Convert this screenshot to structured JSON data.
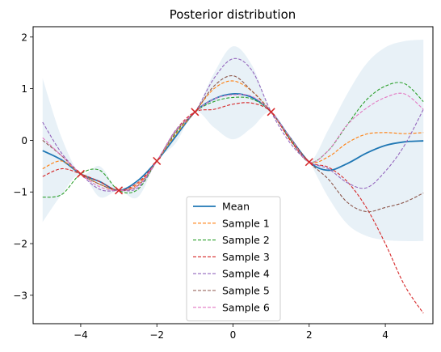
{
  "chart_data": {
    "type": "line",
    "title": "Posterior distribution",
    "xlabel": "",
    "ylabel": "",
    "xlim": [
      -5.25,
      5.25
    ],
    "ylim": [
      -3.55,
      2.2
    ],
    "xticks": [
      -4,
      -2,
      0,
      2,
      4
    ],
    "yticks": [
      -3,
      -2,
      -1,
      0,
      1,
      2
    ],
    "grid": false,
    "legend_position": "bottom-center",
    "band": {
      "color": "#1f77b4",
      "x": [
        -5,
        -4.5,
        -4,
        -3.5,
        -3,
        -2.5,
        -2,
        -1.5,
        -1,
        -0.5,
        0,
        0.5,
        1,
        1.5,
        2,
        2.5,
        3,
        3.5,
        4,
        4.5,
        5
      ],
      "upper": [
        1.2,
        0.05,
        -0.65,
        -0.5,
        -0.97,
        -0.8,
        -0.4,
        0.22,
        0.55,
        1.3,
        1.82,
        1.45,
        0.55,
        0.05,
        -0.42,
        0.2,
        0.9,
        1.48,
        1.8,
        1.92,
        1.95
      ],
      "lower": [
        -1.58,
        -1.05,
        -0.65,
        -1.1,
        -0.97,
        -1.1,
        -0.4,
        -0.05,
        0.55,
        0.25,
        0.02,
        0.25,
        0.55,
        0.05,
        -0.42,
        -1.1,
        -1.62,
        -1.85,
        -1.93,
        -1.95,
        -1.95
      ]
    },
    "observations": {
      "color": "#d62728",
      "marker": "x",
      "x": [
        -4,
        -3,
        -2,
        -1,
        1,
        2
      ],
      "y": [
        -0.65,
        -0.97,
        -0.4,
        0.55,
        0.55,
        -0.42
      ]
    },
    "series": [
      {
        "name": "Mean",
        "color": "#1f77b4",
        "style": "solid",
        "x": [
          -5,
          -4.5,
          -4,
          -3.5,
          -3,
          -2.5,
          -2,
          -1.5,
          -1,
          -0.5,
          0,
          0.5,
          1,
          1.5,
          2,
          2.5,
          3,
          3.5,
          4,
          4.5,
          5
        ],
        "y": [
          -0.2,
          -0.38,
          -0.65,
          -0.8,
          -0.97,
          -0.78,
          -0.4,
          0.08,
          0.55,
          0.8,
          0.9,
          0.83,
          0.55,
          0.05,
          -0.42,
          -0.58,
          -0.45,
          -0.25,
          -0.1,
          -0.03,
          -0.01
        ]
      },
      {
        "name": "Sample 1",
        "color": "#ff7f0e",
        "style": "dashed",
        "x": [
          -5,
          -4.5,
          -4,
          -3.5,
          -3,
          -2.5,
          -2,
          -1.5,
          -1,
          -0.5,
          0,
          0.5,
          1,
          1.5,
          2,
          2.5,
          3,
          3.5,
          4,
          4.5,
          5
        ],
        "y": [
          -0.55,
          -0.4,
          -0.65,
          -0.85,
          -0.97,
          -0.85,
          -0.4,
          0.12,
          0.55,
          1.0,
          1.15,
          0.95,
          0.55,
          0.02,
          -0.42,
          -0.32,
          -0.05,
          0.12,
          0.15,
          0.13,
          0.15
        ]
      },
      {
        "name": "Sample 2",
        "color": "#2ca02c",
        "style": "dashed",
        "x": [
          -5,
          -4.5,
          -4,
          -3.5,
          -3,
          -2.5,
          -2,
          -1.5,
          -1,
          -0.5,
          0,
          0.5,
          1,
          1.5,
          2,
          2.5,
          3,
          3.5,
          4,
          4.5,
          5
        ],
        "y": [
          -1.1,
          -1.05,
          -0.65,
          -0.58,
          -0.97,
          -0.95,
          -0.4,
          0.15,
          0.55,
          0.75,
          0.83,
          0.8,
          0.55,
          0.02,
          -0.42,
          -0.2,
          0.3,
          0.78,
          1.05,
          1.1,
          0.75
        ]
      },
      {
        "name": "Sample 3",
        "color": "#d62728",
        "style": "dashed",
        "x": [
          -5,
          -4.5,
          -4,
          -3.5,
          -3,
          -2.5,
          -2,
          -1.5,
          -1,
          -0.5,
          0,
          0.5,
          1,
          1.5,
          2,
          2.5,
          3,
          3.5,
          4,
          4.5,
          5
        ],
        "y": [
          -0.7,
          -0.55,
          -0.65,
          -0.8,
          -0.97,
          -0.82,
          -0.4,
          0.2,
          0.55,
          0.6,
          0.7,
          0.72,
          0.55,
          0.0,
          -0.42,
          -0.52,
          -0.8,
          -1.3,
          -2.0,
          -2.8,
          -3.35
        ]
      },
      {
        "name": "Sample 4",
        "color": "#9467bd",
        "style": "dashed",
        "x": [
          -5,
          -4.5,
          -4,
          -3.5,
          -3,
          -2.5,
          -2,
          -1.5,
          -1,
          -0.5,
          0,
          0.5,
          1,
          1.5,
          2,
          2.5,
          3,
          3.5,
          4,
          4.5,
          5
        ],
        "y": [
          0.35,
          -0.25,
          -0.65,
          -0.95,
          -0.97,
          -0.92,
          -0.4,
          0.2,
          0.55,
          1.2,
          1.58,
          1.35,
          0.55,
          -0.05,
          -0.42,
          -0.55,
          -0.82,
          -0.92,
          -0.6,
          -0.1,
          0.6
        ]
      },
      {
        "name": "Sample 5",
        "color": "#8c564b",
        "style": "dashed",
        "x": [
          -5,
          -4.5,
          -4,
          -3.5,
          -3,
          -2.5,
          -2,
          -1.5,
          -1,
          -0.5,
          0,
          0.5,
          1,
          1.5,
          2,
          2.5,
          3,
          3.5,
          4,
          4.5,
          5
        ],
        "y": [
          0.0,
          -0.3,
          -0.65,
          -0.85,
          -0.97,
          -0.88,
          -0.4,
          0.18,
          0.55,
          1.05,
          1.25,
          0.95,
          0.55,
          0.05,
          -0.42,
          -0.75,
          -1.2,
          -1.38,
          -1.3,
          -1.2,
          -1.02
        ]
      },
      {
        "name": "Sample 6",
        "color": "#e377c2",
        "style": "dashed",
        "x": [
          -5,
          -4.5,
          -4,
          -3.5,
          -3,
          -2.5,
          -2,
          -1.5,
          -1,
          -0.5,
          0,
          0.5,
          1,
          1.5,
          2,
          2.5,
          3,
          3.5,
          4,
          4.5,
          5
        ],
        "y": [
          0.05,
          -0.3,
          -0.65,
          -0.9,
          -0.97,
          -0.88,
          -0.4,
          0.18,
          0.55,
          0.8,
          0.88,
          0.85,
          0.55,
          0.05,
          -0.42,
          -0.2,
          0.3,
          0.62,
          0.83,
          0.9,
          0.6
        ]
      }
    ]
  }
}
